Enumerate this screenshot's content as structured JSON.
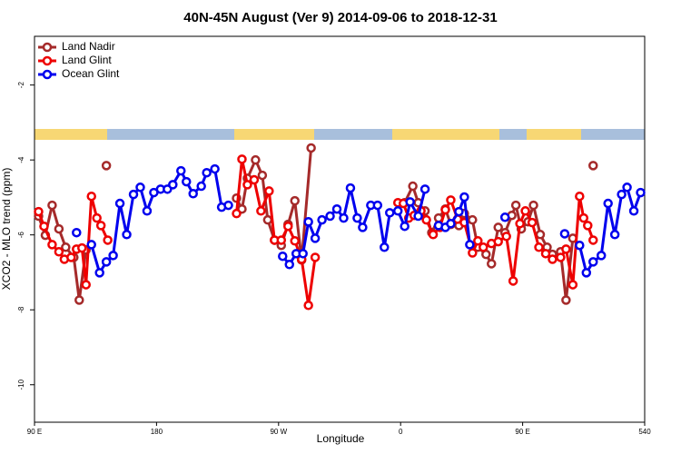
{
  "chart_data": {
    "type": "line",
    "title": "40N-45N August (Ver 9)   2014-09-06 to 2018-12-31",
    "x_label": "Longitude",
    "y_label": "XCO2 - MLO trend (ppm)",
    "xlim": [
      90,
      540
    ],
    "ylim": [
      -11,
      -0.7
    ],
    "xticks": [
      {
        "value": 90,
        "label": "90 E"
      },
      180,
      {
        "value": 270,
        "label": "90 W"
      },
      {
        "value": 360,
        "label": "0"
      },
      {
        "value": 450,
        "label": "90 E"
      },
      540
    ],
    "yticks": [
      -2,
      -4,
      -6,
      -8,
      -10
    ],
    "legend": "top-left",
    "series": [
      {
        "name": "Land Nadir",
        "color": "#a52a2a",
        "x": [
          93,
          98,
          103,
          108,
          113,
          119,
          123,
          128,
          133,
          143,
          200,
          239,
          243,
          247,
          253,
          258,
          262,
          267,
          272,
          277,
          282,
          287,
          294,
          370,
          363,
          369,
          373,
          378,
          383,
          388,
          393,
          397,
          403,
          407,
          413,
          417,
          423,
          427,
          432,
          437,
          442,
          445,
          449,
          454,
          458,
          463,
          468,
          472,
          478,
          482,
          487,
          495,
          502
        ],
        "values": [
          -5.5,
          -6.01,
          -5.21,
          -5.84,
          -6.33,
          -6.6,
          -7.74,
          -6.4,
          null,
          -4.15,
          null,
          -5.02,
          -5.31,
          -4.49,
          -4.0,
          -4.41,
          -5.6,
          -6.14,
          -6.28,
          -5.72,
          -5.09,
          -6.67,
          -3.68,
          null,
          -5.14,
          -4.7,
          -5.14,
          -5.36,
          -5.94,
          -5.55,
          -5.31,
          -5.72,
          -5.75,
          -5.43,
          -5.6,
          -6.33,
          -6.52,
          -6.77,
          -5.8,
          -5.94,
          -5.48,
          -5.21,
          -5.84,
          -5.65,
          -5.21,
          -5.99,
          -6.33,
          -6.52,
          -6.45,
          -7.74,
          -6.09,
          null,
          -4.15
        ]
      },
      {
        "name": "Land Glint",
        "color": "#ee0000",
        "x": [
          93,
          97,
          103,
          108,
          112,
          117,
          121,
          125,
          128,
          132,
          136,
          139,
          144,
          200,
          239,
          243,
          247,
          252,
          257,
          263,
          267,
          272,
          277,
          282,
          287,
          292,
          297,
          370,
          358,
          362,
          366,
          370,
          375,
          379,
          384,
          389,
          393,
          397,
          402,
          407,
          413,
          417,
          421,
          427,
          432,
          438,
          443,
          448,
          452,
          457,
          462,
          467,
          472,
          478,
          482,
          487,
          492,
          495,
          498,
          502
        ],
        "values": [
          -5.38,
          -5.77,
          -6.26,
          -6.45,
          -6.65,
          -6.6,
          -6.38,
          -6.35,
          -7.33,
          -4.97,
          -5.55,
          -5.75,
          -6.14,
          null,
          -5.43,
          -3.98,
          -4.66,
          -4.53,
          -5.36,
          -4.83,
          -6.14,
          -6.14,
          -5.77,
          -6.16,
          -6.65,
          -7.88,
          -6.6,
          null,
          -5.14,
          -5.16,
          -5.55,
          -5.48,
          -5.36,
          -5.6,
          -5.99,
          -5.8,
          -5.33,
          -5.07,
          -5.58,
          -5.67,
          -6.48,
          -6.16,
          -6.33,
          -6.23,
          -6.18,
          -6.04,
          -7.23,
          -5.7,
          -5.36,
          -5.67,
          -6.33,
          -6.5,
          -6.65,
          -6.6,
          -6.38,
          -7.33,
          -4.97,
          -5.55,
          -5.75,
          -6.14
        ]
      },
      {
        "name": "Ocean Glint",
        "color": "#0000ee",
        "x": [
          121,
          124,
          132,
          138,
          143,
          148,
          153,
          158,
          163,
          168,
          173,
          178,
          183,
          188,
          192,
          198,
          202,
          207,
          213,
          217,
          223,
          228,
          233,
          260,
          273,
          278,
          283,
          288,
          292,
          297,
          302,
          308,
          313,
          318,
          323,
          328,
          332,
          338,
          343,
          348,
          352,
          358,
          363,
          367,
          373,
          378,
          381,
          388,
          393,
          397,
          403,
          407,
          411,
          420,
          437,
          480,
          481,
          486,
          492,
          497,
          502,
          508,
          513,
          518,
          523,
          527,
          532,
          537
        ],
        "values": [
          -5.94,
          null,
          -6.26,
          -7.01,
          -6.72,
          -6.55,
          -5.16,
          -5.99,
          -4.92,
          -4.73,
          -5.36,
          -4.87,
          -4.78,
          -4.78,
          -4.66,
          -4.29,
          -4.58,
          -4.9,
          -4.7,
          -4.34,
          -4.24,
          -5.26,
          -5.21,
          null,
          -6.57,
          -6.79,
          -6.5,
          -6.5,
          -5.65,
          -6.09,
          -5.6,
          -5.5,
          -5.31,
          -5.55,
          -4.75,
          -5.55,
          -5.8,
          -5.21,
          -5.21,
          -6.33,
          -5.41,
          -5.36,
          -5.77,
          -5.12,
          -5.5,
          -4.78,
          null,
          -5.75,
          -5.8,
          -5.7,
          -5.38,
          -4.99,
          -6.26,
          null,
          -5.53,
          null,
          -5.97,
          null,
          -6.28,
          -7.01,
          -6.72,
          -6.55,
          -5.16,
          -5.99,
          -4.92,
          -4.73,
          -5.36,
          -4.87
        ]
      }
    ]
  }
}
